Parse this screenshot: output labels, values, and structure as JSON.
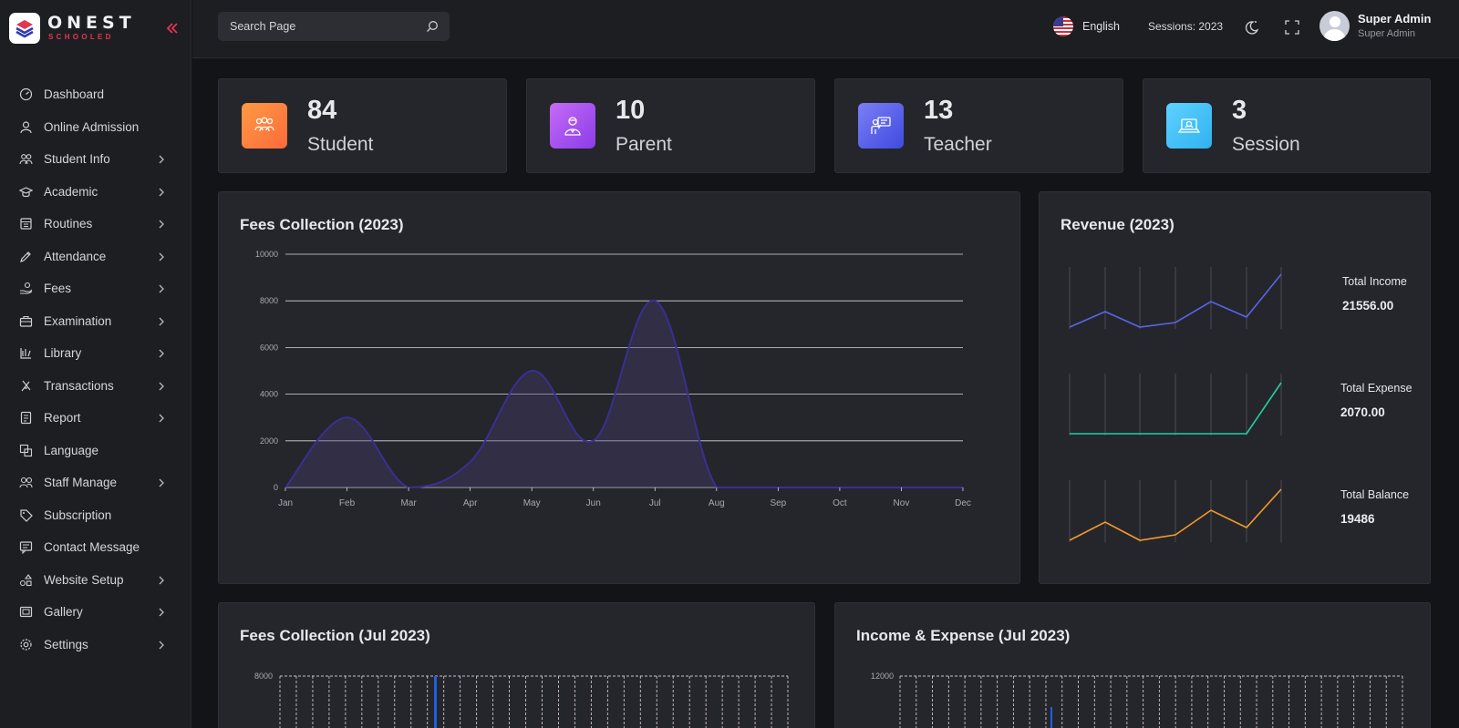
{
  "brand": {
    "name": "ONEST",
    "tagline": "SCHOOLED"
  },
  "sidebar": {
    "items": [
      {
        "label": "Dashboard",
        "icon": "dashboard-icon",
        "has_submenu": false
      },
      {
        "label": "Online Admission",
        "icon": "user-icon",
        "has_submenu": false
      },
      {
        "label": "Student Info",
        "icon": "users-group-icon",
        "has_submenu": true
      },
      {
        "label": "Academic",
        "icon": "graduation-cap-icon",
        "has_submenu": true
      },
      {
        "label": "Routines",
        "icon": "calendar-icon",
        "has_submenu": true
      },
      {
        "label": "Attendance",
        "icon": "pen-icon",
        "has_submenu": true
      },
      {
        "label": "Fees",
        "icon": "hand-coin-icon",
        "has_submenu": true
      },
      {
        "label": "Examination",
        "icon": "briefcase-icon",
        "has_submenu": true
      },
      {
        "label": "Library",
        "icon": "books-icon",
        "has_submenu": true
      },
      {
        "label": "Transactions",
        "icon": "feather-icon",
        "has_submenu": true
      },
      {
        "label": "Report",
        "icon": "report-icon",
        "has_submenu": true
      },
      {
        "label": "Language",
        "icon": "language-icon",
        "has_submenu": false
      },
      {
        "label": "Staff Manage",
        "icon": "staff-icon",
        "has_submenu": true
      },
      {
        "label": "Subscription",
        "icon": "tag-icon",
        "has_submenu": false
      },
      {
        "label": "Contact Message",
        "icon": "message-icon",
        "has_submenu": false
      },
      {
        "label": "Website Setup",
        "icon": "shapes-icon",
        "has_submenu": true
      },
      {
        "label": "Gallery",
        "icon": "gallery-icon",
        "has_submenu": true
      },
      {
        "label": "Settings",
        "icon": "gear-icon",
        "has_submenu": true
      }
    ]
  },
  "topbar": {
    "search_placeholder": "Search Page",
    "language": "English",
    "sessions": "Sessions: 2023",
    "user_name": "Super Admin",
    "user_role": "Super Admin"
  },
  "stats": [
    {
      "value": "84",
      "label": "Student",
      "color_from": "#ff9a44",
      "color_to": "#fc6a3a",
      "icon": "students-icon"
    },
    {
      "value": "10",
      "label": "Parent",
      "color_from": "#c66bf7",
      "color_to": "#8a3ce8",
      "icon": "parent-icon"
    },
    {
      "value": "13",
      "label": "Teacher",
      "color_from": "#7b7ff5",
      "color_to": "#3f4ae0",
      "icon": "teacher-icon"
    },
    {
      "value": "3",
      "label": "Session",
      "color_from": "#5fd2ff",
      "color_to": "#2fb2f0",
      "icon": "session-icon"
    }
  ],
  "fees_chart": {
    "title": "Fees Collection (2023)"
  },
  "revenue": {
    "title": "Revenue (2023)",
    "income_label": "Total Income",
    "income_value": "21556.00",
    "expense_label": "Total Expense",
    "expense_value": "2070.00",
    "balance_label": "Total Balance",
    "balance_value": "19486",
    "income_color": "#5b63e8",
    "expense_color": "#1fd1a5",
    "balance_color": "#f29a2e"
  },
  "monthly_fees": {
    "title": "Fees Collection (Jul 2023)",
    "y_top_label": "8000"
  },
  "income_expense": {
    "title": "Income & Expense (Jul 2023)",
    "y_top_label": "12000"
  },
  "chart_data": [
    {
      "type": "area",
      "title": "Fees Collection (2023)",
      "categories": [
        "Jan",
        "Feb",
        "Mar",
        "Apr",
        "May",
        "Jun",
        "Jul",
        "Aug",
        "Sep",
        "Oct",
        "Nov",
        "Dec"
      ],
      "values": [
        0,
        3000,
        0,
        1100,
        5000,
        2000,
        8000,
        0,
        0,
        0,
        0,
        0
      ],
      "ylim": [
        0,
        10000
      ],
      "yticks": [
        0,
        2000,
        4000,
        6000,
        8000,
        10000
      ],
      "color": "#3a2f93",
      "grid": true
    }
  ]
}
